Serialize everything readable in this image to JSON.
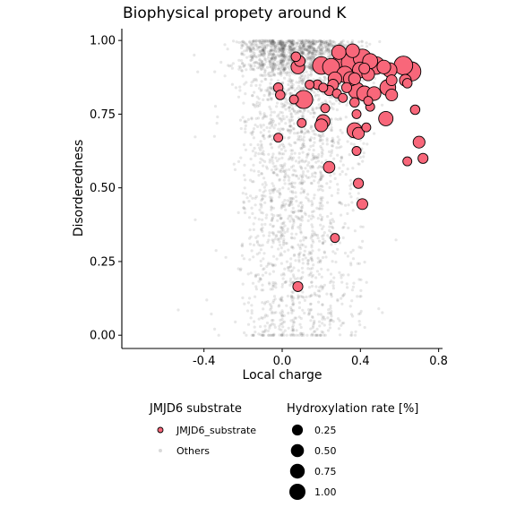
{
  "chart_data": {
    "type": "scatter",
    "title": "Biophysical propety around K",
    "xlabel": "Local charge",
    "ylabel": "Disorderedness",
    "xlim": [
      -0.82,
      0.82
    ],
    "ylim": [
      -0.045,
      1.04
    ],
    "x_ticks": [
      -0.4,
      0.0,
      0.4,
      0.8
    ],
    "x_tick_labels": [
      "-0.4",
      "0.0",
      "0.4",
      "0.8"
    ],
    "y_ticks": [
      0.0,
      0.25,
      0.5,
      0.75,
      1.0
    ],
    "y_tick_labels": [
      "0.00",
      "0.25",
      "0.50",
      "0.75",
      "1.00"
    ],
    "grid": false,
    "legend_placement": "bottom",
    "colors": {
      "substrate_fill": "#F8677A",
      "substrate_edge": "#000000",
      "others": "#444444"
    },
    "background_series": {
      "name": "Others",
      "note_values": "several thousand faint points; x concentrated in -0.3..0.4 with jitter columns, y spread 0..1 concentrated at high disorder"
    },
    "series": [
      {
        "name": "JMJD6_substrate",
        "points": [
          {
            "x": 0.29,
            "y": 0.96,
            "rate": 0.35
          },
          {
            "x": 0.36,
            "y": 0.965,
            "rate": 0.3
          },
          {
            "x": 0.2,
            "y": 0.915,
            "rate": 0.6
          },
          {
            "x": 0.25,
            "y": 0.91,
            "rate": 0.55
          },
          {
            "x": 0.3,
            "y": 0.92,
            "rate": 0.75
          },
          {
            "x": 0.35,
            "y": 0.925,
            "rate": 0.7
          },
          {
            "x": 0.41,
            "y": 0.94,
            "rate": 0.65
          },
          {
            "x": 0.45,
            "y": 0.93,
            "rate": 0.4
          },
          {
            "x": 0.48,
            "y": 0.915,
            "rate": 0.6
          },
          {
            "x": 0.62,
            "y": 0.915,
            "rate": 0.7
          },
          {
            "x": 0.66,
            "y": 0.895,
            "rate": 0.75
          },
          {
            "x": 0.55,
            "y": 0.9,
            "rate": 0.35
          },
          {
            "x": 0.52,
            "y": 0.91,
            "rate": 0.3
          },
          {
            "x": 0.4,
            "y": 0.9,
            "rate": 0.45
          },
          {
            "x": 0.32,
            "y": 0.885,
            "rate": 0.5
          },
          {
            "x": 0.27,
            "y": 0.87,
            "rate": 0.3
          },
          {
            "x": 0.35,
            "y": 0.87,
            "rate": 0.35
          },
          {
            "x": 0.08,
            "y": 0.91,
            "rate": 0.3
          },
          {
            "x": 0.09,
            "y": 0.93,
            "rate": 0.15
          },
          {
            "x": 0.07,
            "y": 0.945,
            "rate": 0.1
          },
          {
            "x": 0.37,
            "y": 0.87,
            "rate": 0.2
          },
          {
            "x": 0.44,
            "y": 0.885,
            "rate": 0.25
          },
          {
            "x": 0.42,
            "y": 0.905,
            "rate": 0.15
          },
          {
            "x": 0.63,
            "y": 0.865,
            "rate": 0.2
          },
          {
            "x": 0.64,
            "y": 0.855,
            "rate": 0.1
          },
          {
            "x": 0.56,
            "y": 0.865,
            "rate": 0.15
          },
          {
            "x": 0.54,
            "y": 0.84,
            "rate": 0.45
          },
          {
            "x": 0.38,
            "y": 0.83,
            "rate": 0.5
          },
          {
            "x": 0.42,
            "y": 0.82,
            "rate": 0.4
          },
          {
            "x": 0.47,
            "y": 0.82,
            "rate": 0.3
          },
          {
            "x": 0.56,
            "y": 0.815,
            "rate": 0.2
          },
          {
            "x": 0.11,
            "y": 0.8,
            "rate": 0.65
          },
          {
            "x": 0.26,
            "y": 0.85,
            "rate": 0.15
          },
          {
            "x": 0.33,
            "y": 0.84,
            "rate": 0.12
          },
          {
            "x": 0.18,
            "y": 0.85,
            "rate": 0.1
          },
          {
            "x": 0.14,
            "y": 0.85,
            "rate": 0.08
          },
          {
            "x": 0.21,
            "y": 0.84,
            "rate": 0.08
          },
          {
            "x": -0.02,
            "y": 0.84,
            "rate": 0.1
          },
          {
            "x": -0.01,
            "y": 0.815,
            "rate": 0.1
          },
          {
            "x": 0.24,
            "y": 0.83,
            "rate": 0.12
          },
          {
            "x": 0.28,
            "y": 0.82,
            "rate": 0.08
          },
          {
            "x": 0.31,
            "y": 0.805,
            "rate": 0.08
          },
          {
            "x": 0.37,
            "y": 0.79,
            "rate": 0.1
          },
          {
            "x": 0.45,
            "y": 0.775,
            "rate": 0.08
          },
          {
            "x": 0.44,
            "y": 0.795,
            "rate": 0.08
          },
          {
            "x": 0.06,
            "y": 0.8,
            "rate": 0.08
          },
          {
            "x": 0.22,
            "y": 0.77,
            "rate": 0.08
          },
          {
            "x": 0.38,
            "y": 0.75,
            "rate": 0.08
          },
          {
            "x": 0.68,
            "y": 0.765,
            "rate": 0.1
          },
          {
            "x": 0.53,
            "y": 0.735,
            "rate": 0.35
          },
          {
            "x": 0.21,
            "y": 0.725,
            "rate": 0.3
          },
          {
            "x": 0.2,
            "y": 0.712,
            "rate": 0.25
          },
          {
            "x": 0.37,
            "y": 0.695,
            "rate": 0.4
          },
          {
            "x": 0.39,
            "y": 0.685,
            "rate": 0.2
          },
          {
            "x": 0.1,
            "y": 0.72,
            "rate": 0.08
          },
          {
            "x": 0.43,
            "y": 0.705,
            "rate": 0.08
          },
          {
            "x": 0.7,
            "y": 0.655,
            "rate": 0.2
          },
          {
            "x": -0.02,
            "y": 0.67,
            "rate": 0.08
          },
          {
            "x": 0.38,
            "y": 0.625,
            "rate": 0.08
          },
          {
            "x": 0.72,
            "y": 0.6,
            "rate": 0.12
          },
          {
            "x": 0.64,
            "y": 0.59,
            "rate": 0.08
          },
          {
            "x": 0.24,
            "y": 0.57,
            "rate": 0.18
          },
          {
            "x": 0.39,
            "y": 0.515,
            "rate": 0.12
          },
          {
            "x": 0.41,
            "y": 0.445,
            "rate": 0.15
          },
          {
            "x": 0.27,
            "y": 0.33,
            "rate": 0.08
          },
          {
            "x": 0.08,
            "y": 0.165,
            "rate": 0.12
          }
        ]
      }
    ],
    "legends": [
      {
        "title": "JMJD6 substrate",
        "entries": [
          "JMJD6_substrate",
          "Others"
        ]
      },
      {
        "title": "Hydroxylation rate [%]",
        "entries": [
          {
            "label": "0.25",
            "value": 0.25
          },
          {
            "label": "0.50",
            "value": 0.5
          },
          {
            "label": "0.75",
            "value": 0.75
          },
          {
            "label": "1.00",
            "value": 1.0
          }
        ]
      }
    ]
  }
}
